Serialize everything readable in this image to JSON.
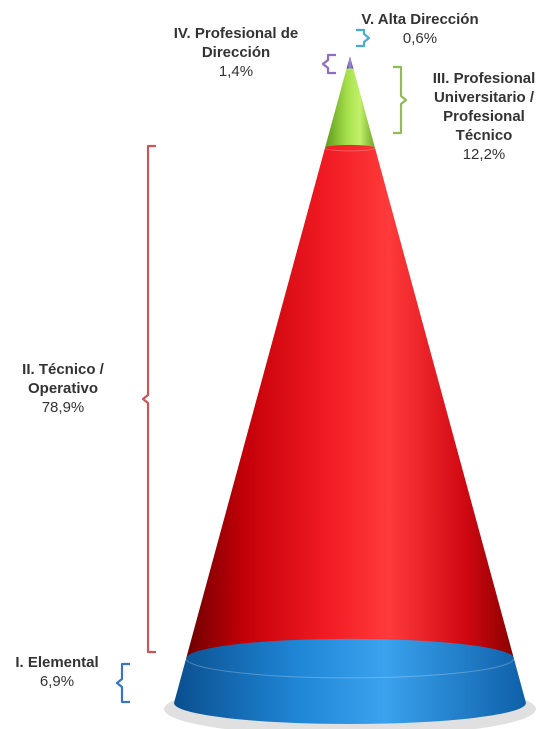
{
  "chart_data": {
    "type": "cone",
    "title": "",
    "total": 100,
    "segments": [
      {
        "name": "V. Alta Dirección",
        "value": 0.6,
        "value_label": "0,6%",
        "color": "#7f6fbf"
      },
      {
        "name": "IV. Profesional de Dirección",
        "value": 1.4,
        "value_label": "1,4%",
        "color": "#8e7cc3"
      },
      {
        "name": "III. Profesional Universitario / Profesional Técnico",
        "value": 12.2,
        "value_label": "12,2%",
        "color": "#9bd04a"
      },
      {
        "name": "II. Técnico / Operativo",
        "value": 78.9,
        "value_label": "78,9%",
        "color": "#e8121a"
      },
      {
        "name": "I. Elemental",
        "value": 6.9,
        "value_label": "6,9%",
        "color": "#1d83d4"
      }
    ],
    "bracket_colors": [
      "#4aa9d8",
      "#8e6cc0",
      "#8fbc54",
      "#c9575a",
      "#3a75c4"
    ]
  }
}
